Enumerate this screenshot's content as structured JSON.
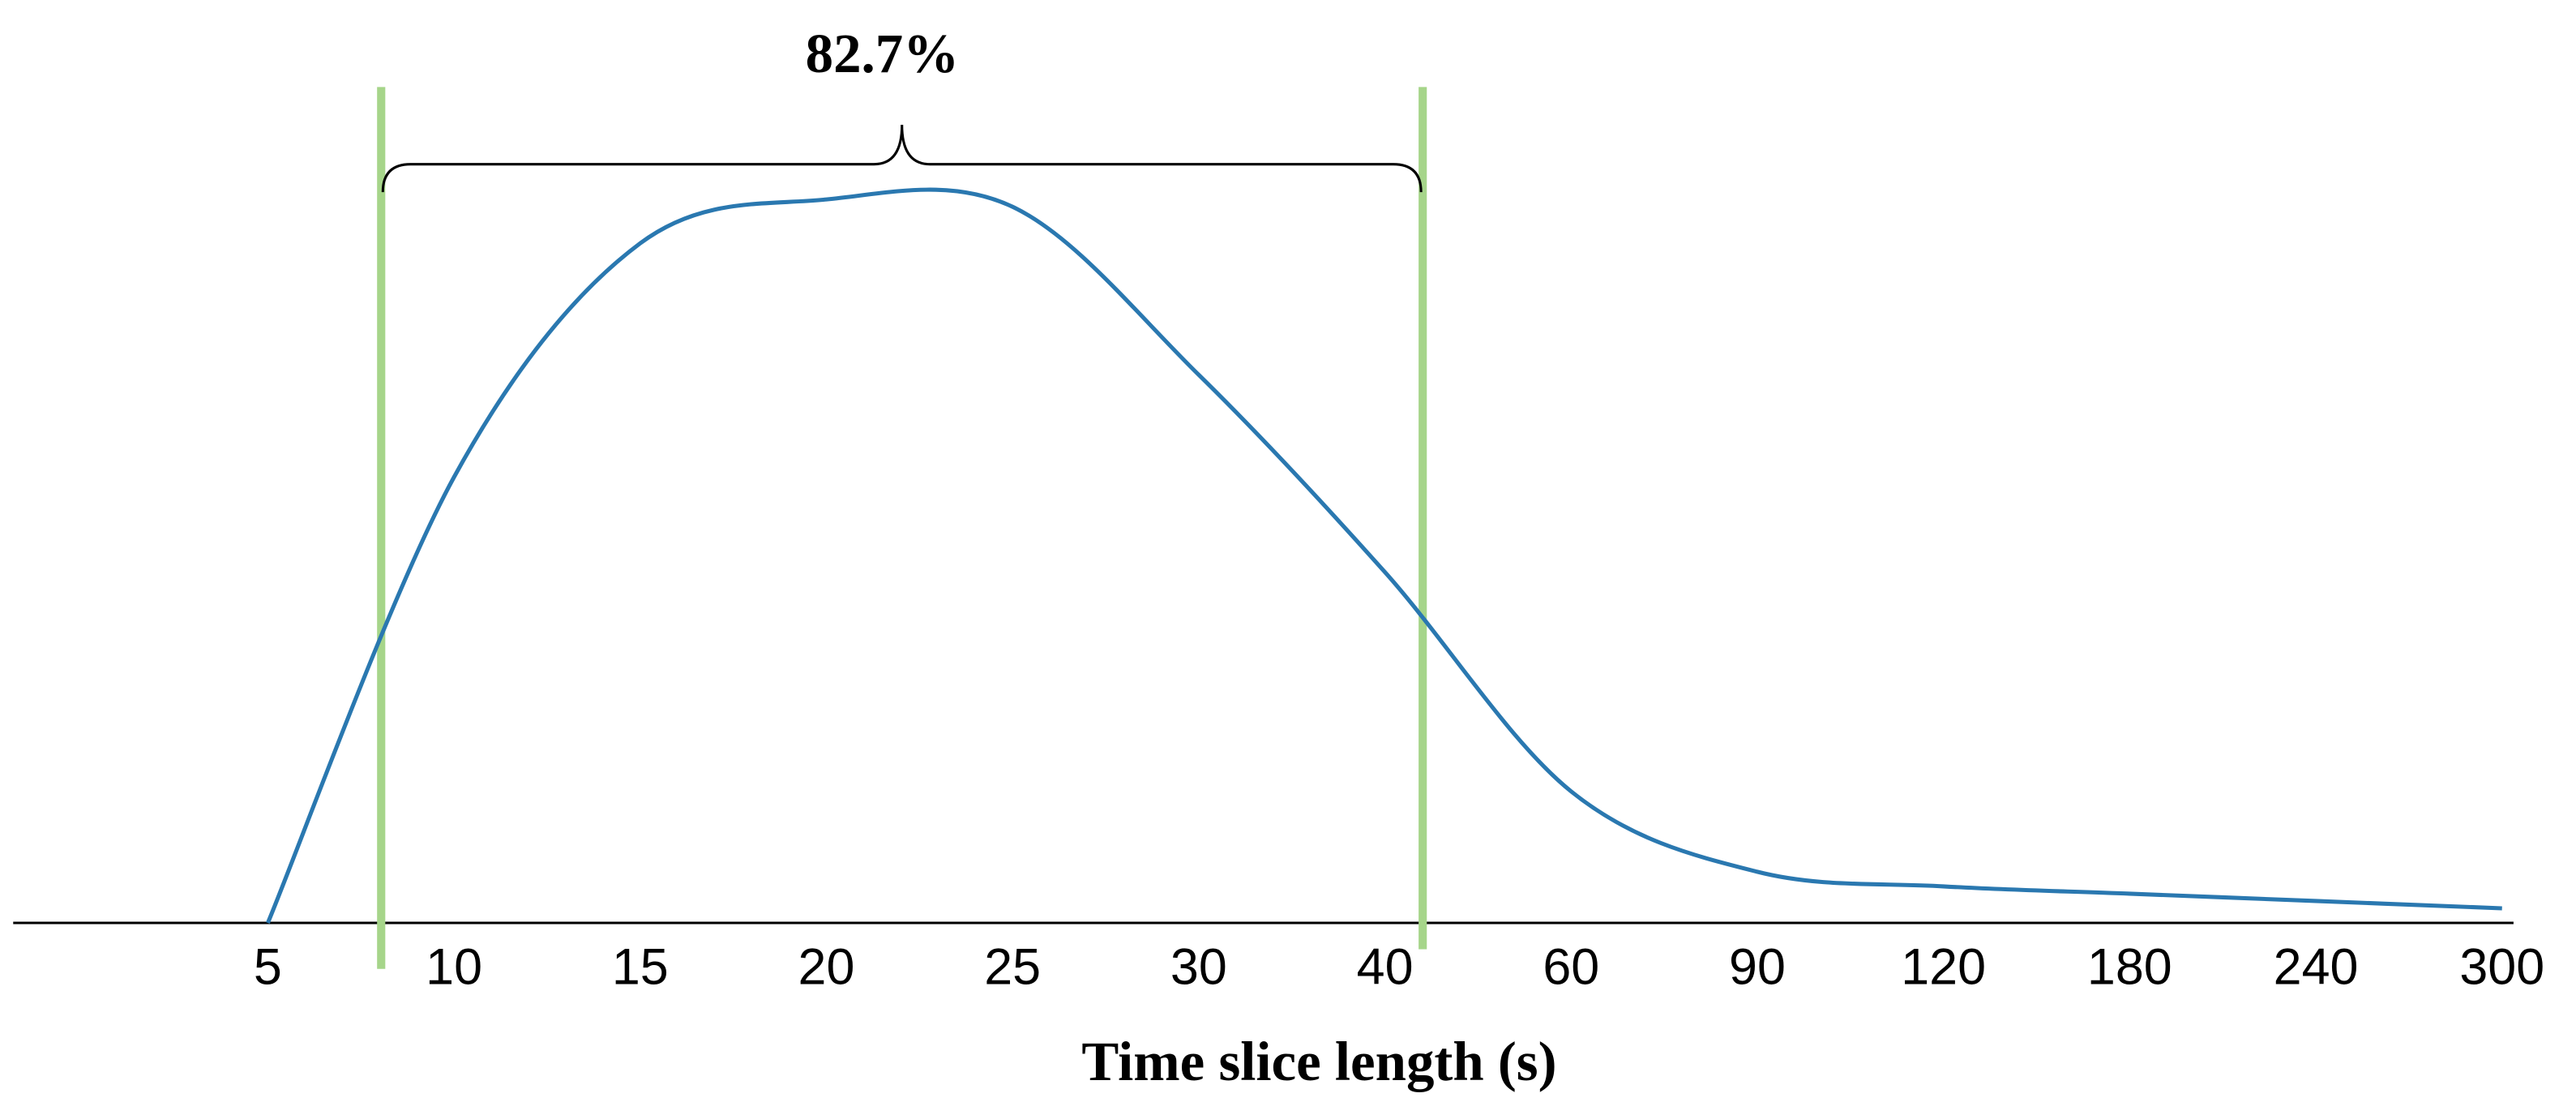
{
  "chart_data": {
    "type": "line",
    "x_label": "Time slice length (s)",
    "annotation": "82.7%",
    "categories": [
      "5",
      "10",
      "15",
      "20",
      "25",
      "30",
      "40",
      "60",
      "90",
      "120",
      "180",
      "240",
      "300"
    ],
    "series": [
      {
        "name": null,
        "color": "#2a78b0",
        "values": [
          0,
          61,
          93,
          99,
          98,
          75,
          48,
          18,
          7,
          5,
          4,
          3,
          2
        ]
      }
    ],
    "ylim": [
      0,
      100
    ]
  }
}
